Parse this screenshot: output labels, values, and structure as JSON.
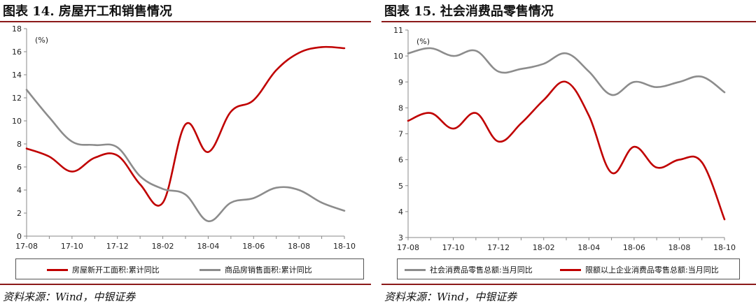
{
  "colors": {
    "red": "#c00000",
    "gray": "#8c8c8c",
    "axis": "#888888",
    "rule": "#8b1a1a"
  },
  "left": {
    "title": "图表 14. 房屋开工和销售情况",
    "source": "资料来源：Wind，中银证券",
    "chart_data": {
      "type": "line",
      "unit_label": "(%)",
      "x_ticks": [
        "17-08",
        "17-10",
        "17-12",
        "18-02",
        "18-04",
        "18-06",
        "18-08",
        "18-10"
      ],
      "y_ticks": [
        "0",
        "2",
        "4",
        "6",
        "8",
        "10",
        "12",
        "14",
        "16",
        "18"
      ],
      "ylim": [
        0,
        18
      ],
      "x": [
        "17-08",
        "17-09",
        "17-10",
        "17-11",
        "17-12",
        "18-01",
        "18-02",
        "18-03",
        "18-04",
        "18-05",
        "18-06",
        "18-07",
        "18-08",
        "18-09",
        "18-10"
      ],
      "series": [
        {
          "name": "房屋新开工面积:累计同比",
          "color": "#c00000",
          "values": [
            7.6,
            6.9,
            5.6,
            6.8,
            7.0,
            4.5,
            2.9,
            9.7,
            7.3,
            10.8,
            11.8,
            14.4,
            15.9,
            16.4,
            16.3
          ]
        },
        {
          "name": "商品房销售面积:累计同比",
          "color": "#8c8c8c",
          "values": [
            12.7,
            10.3,
            8.2,
            7.9,
            7.7,
            5.2,
            4.1,
            3.6,
            1.3,
            2.9,
            3.3,
            4.2,
            4.0,
            2.9,
            2.2
          ]
        }
      ]
    }
  },
  "right": {
    "title": "图表 15. 社会消费品零售情况",
    "source": "资料来源：Wind，中银证券",
    "chart_data": {
      "type": "line",
      "unit_label": "(%)",
      "x_ticks": [
        "17-08",
        "17-10",
        "17-12",
        "18-02",
        "18-04",
        "18-06",
        "18-08",
        "18-10"
      ],
      "y_ticks": [
        "3",
        "4",
        "5",
        "6",
        "7",
        "8",
        "9",
        "10",
        "11"
      ],
      "ylim": [
        3,
        11
      ],
      "x": [
        "17-08",
        "17-09",
        "17-10",
        "17-11",
        "17-12",
        "18-01",
        "18-02",
        "18-03",
        "18-04",
        "18-05",
        "18-06",
        "18-07",
        "18-08",
        "18-09",
        "18-10"
      ],
      "series": [
        {
          "name": "社会消费品零售总额:当月同比",
          "color": "#8c8c8c",
          "values": [
            10.1,
            10.3,
            10.0,
            10.2,
            9.4,
            9.5,
            9.7,
            10.1,
            9.4,
            8.5,
            9.0,
            8.8,
            9.0,
            9.2,
            8.6
          ]
        },
        {
          "name": "限额以上企业消费品零售总额:当月同比",
          "color": "#c00000",
          "values": [
            7.5,
            7.8,
            7.2,
            7.8,
            6.7,
            7.4,
            8.3,
            9.0,
            7.7,
            5.5,
            6.5,
            5.7,
            6.0,
            5.9,
            3.7
          ]
        }
      ]
    }
  }
}
